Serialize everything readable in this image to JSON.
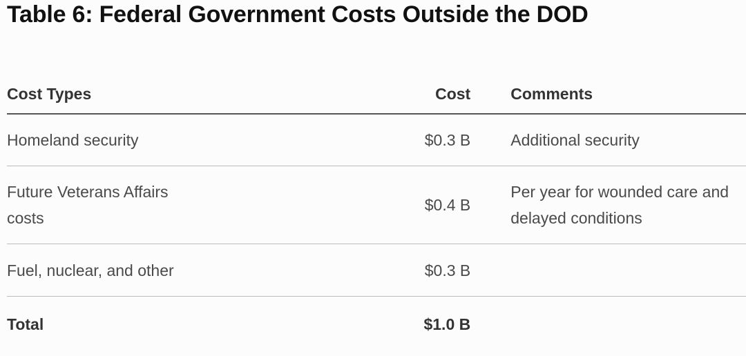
{
  "title": "Table 6: Federal Government Costs Outside the DOD",
  "table": {
    "header": [
      "Cost Types",
      "Cost",
      "Comments"
    ],
    "rows": [
      [
        "Homeland security",
        "$0.3 B",
        "Additional security"
      ],
      [
        "Future Veterans Affairs costs",
        "$0.4 B",
        "Per year for wounded care and delayed conditions"
      ],
      [
        "Fuel, nuclear, and other",
        "$0.3 B"
      ]
    ],
    "total": [
      "Total",
      "$1.0 B"
    ]
  }
}
